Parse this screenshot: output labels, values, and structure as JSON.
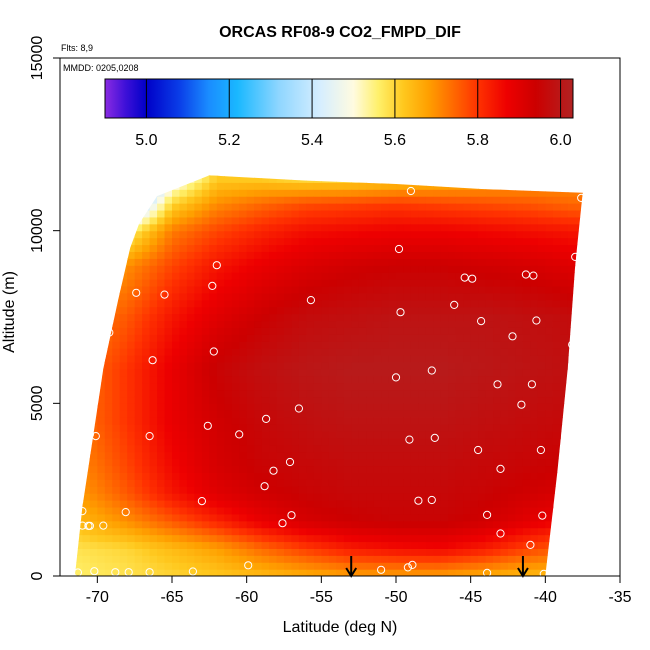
{
  "chart_data": {
    "type": "heatmap",
    "title": "ORCAS RF08-9 CO2_FMPD_DIF",
    "annotations": [
      "Flts: 8,9",
      "MMDD: 0205,0208"
    ],
    "xlabel": "Latitude (deg N)",
    "ylabel": "Altitude (m)",
    "xlim": [
      -72.5,
      -35
    ],
    "ylim": [
      0,
      15000
    ],
    "x_ticks": [
      -70,
      -65,
      -60,
      -55,
      -50,
      -45,
      -40,
      -35
    ],
    "x_tick_labels": [
      "-70",
      "-65",
      "-60",
      "-55",
      "-50",
      "-45",
      "-40",
      "-35"
    ],
    "y_ticks": [
      0,
      5000,
      10000,
      15000
    ],
    "y_tick_labels": [
      "0",
      "5000",
      "10000",
      "15000"
    ],
    "colorbar": {
      "range": [
        4.9,
        6.03
      ],
      "ticks": [
        5.0,
        5.2,
        5.4,
        5.6,
        5.8,
        6.0
      ],
      "tick_labels": [
        "5.0",
        "5.2",
        "5.4",
        "5.6",
        "5.8",
        "6.0"
      ],
      "lines": [
        5.0,
        5.2,
        5.4,
        5.6,
        5.8,
        6.0
      ],
      "colors": [
        {
          "v": 4.9,
          "c": "#8a2be2"
        },
        {
          "v": 4.95,
          "c": "#3d10d8"
        },
        {
          "v": 5.0,
          "c": "#0000c8"
        },
        {
          "v": 5.08,
          "c": "#0a3ee8"
        },
        {
          "v": 5.15,
          "c": "#1a8cff"
        },
        {
          "v": 5.22,
          "c": "#1ab8ff"
        },
        {
          "v": 5.32,
          "c": "#8fd6ff"
        },
        {
          "v": 5.42,
          "c": "#d6eeff"
        },
        {
          "v": 5.5,
          "c": "#fffbe0"
        },
        {
          "v": 5.56,
          "c": "#fff06a"
        },
        {
          "v": 5.62,
          "c": "#ffc81e"
        },
        {
          "v": 5.68,
          "c": "#ffa000"
        },
        {
          "v": 5.74,
          "c": "#ff6a00"
        },
        {
          "v": 5.8,
          "c": "#ff3200"
        },
        {
          "v": 5.87,
          "c": "#ee0000"
        },
        {
          "v": 5.94,
          "c": "#cc0000"
        },
        {
          "v": 6.03,
          "c": "#b22222"
        }
      ]
    },
    "field": {
      "lat": [
        -71.5,
        -68,
        -65,
        -62,
        -59,
        -56,
        -53,
        -50,
        -47,
        -44,
        -41,
        -38
      ],
      "alt": [
        0,
        800,
        1600,
        2400,
        3200,
        4500,
        6000,
        7500,
        9000,
        10000,
        10800,
        11500
      ],
      "left_edge": [
        [
          0,
          -71.5
        ],
        [
          2000,
          -71.0
        ],
        [
          4000,
          -70.3
        ],
        [
          6000,
          -69.6
        ],
        [
          8000,
          -68.6
        ],
        [
          9500,
          -67.8
        ],
        [
          10200,
          -67.2
        ],
        [
          11000,
          -66.0
        ],
        [
          11600,
          -62.5
        ]
      ],
      "right_edge": [
        [
          0,
          -40.0
        ],
        [
          3000,
          -39.2
        ],
        [
          6000,
          -38.5
        ],
        [
          9000,
          -38.0
        ],
        [
          11100,
          -37.5
        ]
      ],
      "top": [
        [
          -66.0,
          11000
        ],
        [
          -62.5,
          11600
        ],
        [
          -56,
          11450
        ],
        [
          -50,
          11350
        ],
        [
          -44,
          11200
        ],
        [
          -37.5,
          11100
        ]
      ],
      "values": [
        [
          5.56,
          5.58,
          5.6,
          5.62,
          5.64,
          5.66,
          5.68,
          5.68,
          5.68,
          5.66,
          5.64,
          5.64
        ],
        [
          5.58,
          5.6,
          5.64,
          5.68,
          5.74,
          5.79,
          5.83,
          5.85,
          5.86,
          5.83,
          5.78,
          5.74
        ],
        [
          5.64,
          5.7,
          5.76,
          5.82,
          5.88,
          5.92,
          5.94,
          5.95,
          5.95,
          5.93,
          5.89,
          5.86
        ],
        [
          5.68,
          5.76,
          5.84,
          5.9,
          5.93,
          5.95,
          5.96,
          5.96,
          5.96,
          5.95,
          5.93,
          5.91
        ],
        [
          5.7,
          5.78,
          5.86,
          5.92,
          5.95,
          5.96,
          5.97,
          5.97,
          5.97,
          5.96,
          5.95,
          5.94
        ],
        [
          5.72,
          5.8,
          5.88,
          5.93,
          5.96,
          5.98,
          5.99,
          5.99,
          5.99,
          5.98,
          5.97,
          5.96
        ],
        [
          5.72,
          5.8,
          5.88,
          5.95,
          5.98,
          6.0,
          6.01,
          6.01,
          6.01,
          6.0,
          5.99,
          5.98
        ],
        [
          5.7,
          5.76,
          5.84,
          5.9,
          5.94,
          5.97,
          5.98,
          5.99,
          5.99,
          5.99,
          5.98,
          5.97
        ],
        [
          5.64,
          5.7,
          5.78,
          5.84,
          5.88,
          5.91,
          5.93,
          5.94,
          5.94,
          5.93,
          5.92,
          5.9
        ],
        [
          5.3,
          5.55,
          5.72,
          5.78,
          5.82,
          5.85,
          5.86,
          5.87,
          5.87,
          5.86,
          5.85,
          5.84
        ],
        [
          5.0,
          5.25,
          5.6,
          5.7,
          5.74,
          5.77,
          5.78,
          5.79,
          5.78,
          5.77,
          5.76,
          5.74
        ],
        [
          4.98,
          5.15,
          5.45,
          5.62,
          5.62,
          5.6,
          5.6,
          5.62,
          5.64,
          5.66,
          5.68,
          5.7
        ]
      ]
    },
    "sample_points": [
      [
        -67.8,
        10800
      ],
      [
        -68.1,
        9600
      ],
      [
        -67.4,
        8200
      ],
      [
        -65.5,
        8150
      ],
      [
        -62.0,
        9000
      ],
      [
        -62.3,
        8400
      ],
      [
        -69.2,
        7050
      ],
      [
        -66.3,
        6250
      ],
      [
        -62.2,
        6500
      ],
      [
        -60.5,
        4100
      ],
      [
        -62.6,
        4350
      ],
      [
        -66.5,
        4050
      ],
      [
        -70.1,
        4050
      ],
      [
        -70.5,
        4100
      ],
      [
        -58.7,
        4550
      ],
      [
        -56.5,
        4850
      ],
      [
        -55.7,
        7990
      ],
      [
        -49.7,
        7640
      ],
      [
        -49.8,
        9470
      ],
      [
        -50.0,
        5750
      ],
      [
        -47.6,
        5950
      ],
      [
        -46.1,
        7850
      ],
      [
        -45.4,
        8640
      ],
      [
        -44.9,
        8610
      ],
      [
        -44.3,
        7380
      ],
      [
        -42.2,
        6940
      ],
      [
        -41.3,
        8730
      ],
      [
        -40.8,
        8700
      ],
      [
        -40.6,
        7400
      ],
      [
        -38.2,
        6700
      ],
      [
        -38.0,
        9240
      ],
      [
        -43.2,
        5550
      ],
      [
        -40.9,
        5550
      ],
      [
        -41.6,
        4960
      ],
      [
        -38.5,
        4800
      ],
      [
        -49.1,
        3950
      ],
      [
        -47.4,
        4000
      ],
      [
        -44.5,
        3650
      ],
      [
        -40.3,
        3650
      ],
      [
        -43.0,
        3100
      ],
      [
        -57.1,
        3300
      ],
      [
        -58.2,
        3050
      ],
      [
        -58.8,
        2600
      ],
      [
        -63.0,
        2170
      ],
      [
        -68.1,
        1850
      ],
      [
        -69.6,
        1460
      ],
      [
        -70.5,
        1450
      ],
      [
        -71.0,
        1460
      ],
      [
        -57.0,
        1760
      ],
      [
        -57.6,
        1530
      ],
      [
        -71.0,
        1880
      ],
      [
        -48.5,
        2180
      ],
      [
        -47.6,
        2200
      ],
      [
        -43.9,
        1770
      ],
      [
        -40.2,
        1750
      ],
      [
        -37.1,
        1280
      ],
      [
        -38.6,
        2900
      ],
      [
        -49.2,
        250
      ],
      [
        -48.9,
        320
      ],
      [
        -51.0,
        180
      ],
      [
        -43.9,
        90
      ],
      [
        -40.1,
        60
      ],
      [
        -59.9,
        310
      ],
      [
        -63.6,
        130
      ],
      [
        -66.5,
        110
      ],
      [
        -67.9,
        110
      ],
      [
        -68.8,
        110
      ],
      [
        -70.2,
        140
      ],
      [
        -71.3,
        100
      ],
      [
        -70.6,
        1450
      ],
      [
        -37.6,
        10950
      ],
      [
        -49.0,
        11150
      ],
      [
        -43.0,
        1230
      ],
      [
        -41.0,
        900
      ]
    ],
    "arrows": [
      -53,
      -41.5
    ]
  }
}
